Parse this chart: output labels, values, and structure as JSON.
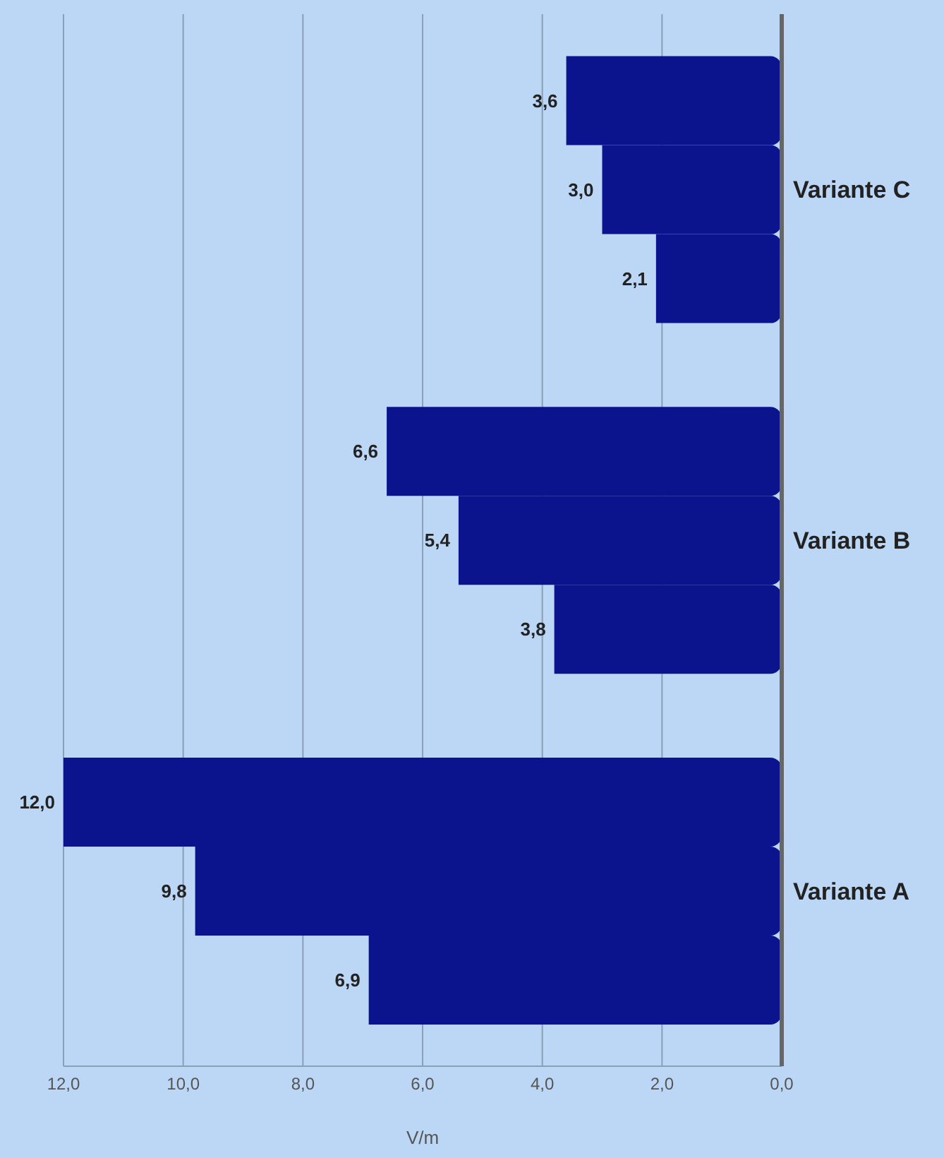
{
  "chart_data": {
    "type": "bar",
    "orientation": "horizontal",
    "xlabel": "V/m",
    "categories": [
      "Variante C",
      "Variante B",
      "Variante A"
    ],
    "series": [
      {
        "color": "#0b148c",
        "values": [
          3.6,
          6.6,
          12.0
        ],
        "value_labels": [
          "3,6",
          "6,6",
          "12,0"
        ]
      },
      {
        "color": "#0b148c",
        "values": [
          3.0,
          5.4,
          9.8
        ],
        "value_labels": [
          "3,0",
          "5,4",
          "9,8"
        ]
      },
      {
        "color": "#0b148c",
        "values": [
          2.1,
          3.8,
          6.9
        ],
        "value_labels": [
          "2,1",
          "3,8",
          "6,9"
        ]
      }
    ],
    "xlim": [
      12,
      0
    ],
    "xticks": [
      {
        "value": 12,
        "label": "12,0"
      },
      {
        "value": 10,
        "label": "10,0"
      },
      {
        "value": 8,
        "label": "8,0"
      },
      {
        "value": 6,
        "label": "6,0"
      },
      {
        "value": 4,
        "label": "4,0"
      },
      {
        "value": 2,
        "label": "2,0"
      },
      {
        "value": 0,
        "label": "0,0"
      }
    ],
    "grid": "x",
    "legend": false
  }
}
